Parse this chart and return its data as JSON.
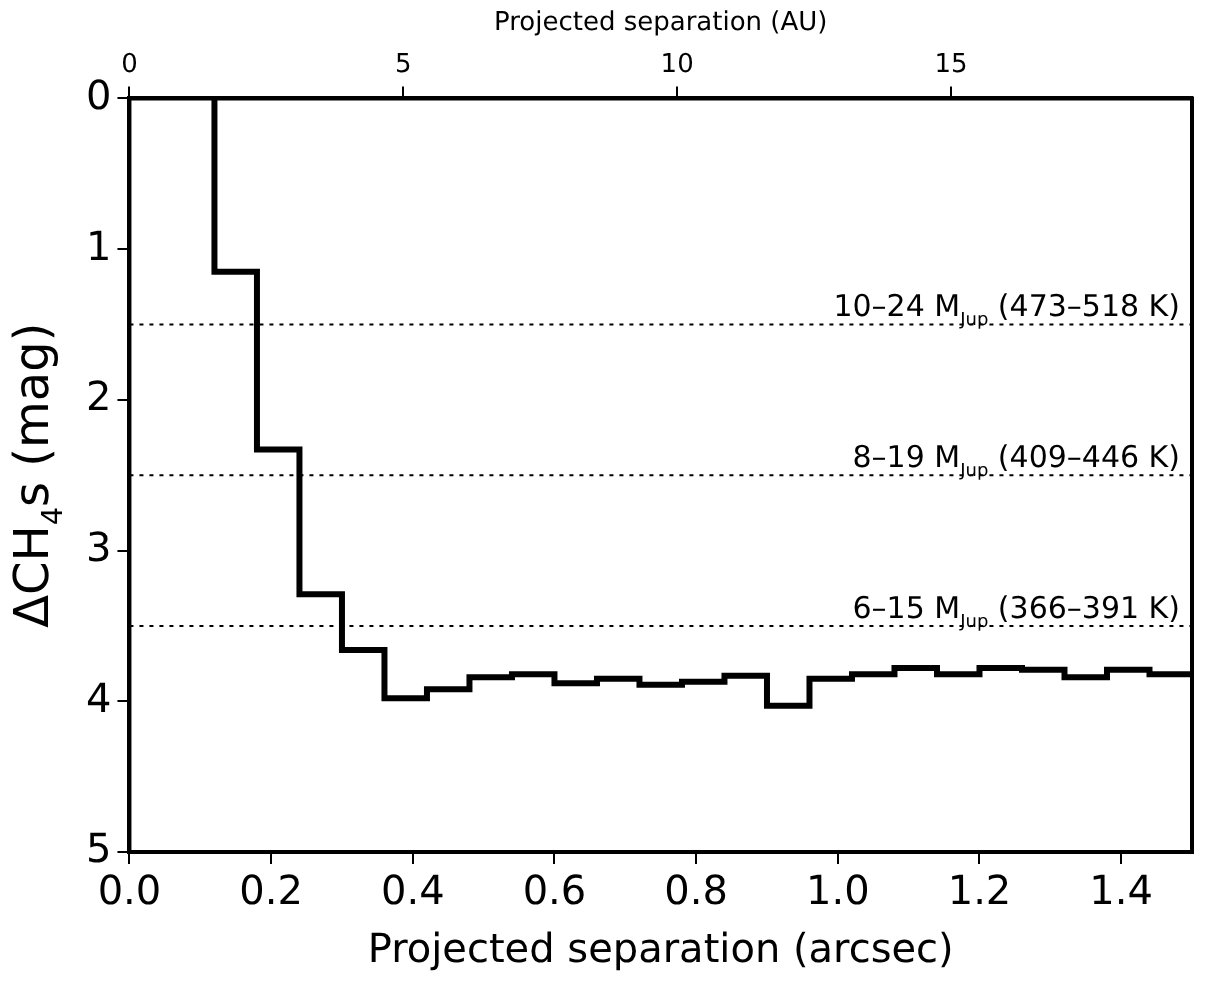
{
  "chart_data": {
    "type": "step",
    "xlabel": "Projected separation (arcsec)",
    "x2label": "Projected separation (AU)",
    "ylabel": "ΔCH$_{4}$s (mag)",
    "x": [
      0.12,
      0.18,
      0.24,
      0.3,
      0.36,
      0.42,
      0.48,
      0.54,
      0.6,
      0.66,
      0.72,
      0.78,
      0.84,
      0.9,
      0.96,
      1.02,
      1.08,
      1.14,
      1.2,
      1.26,
      1.32,
      1.38,
      1.44,
      1.5
    ],
    "series": [
      {
        "color": "#000000",
        "values": [
          0,
          1.15,
          2.33,
          3.29,
          3.66,
          3.98,
          3.92,
          3.84,
          3.82,
          3.88,
          3.85,
          3.89,
          3.87,
          3.83,
          4.03,
          3.85,
          3.82,
          3.78,
          3.82,
          3.78,
          3.79,
          3.84,
          3.79,
          3.82
        ]
      }
    ],
    "xlim": [
      0,
      1.5
    ],
    "xticks": [
      {
        "value": 0,
        "label": "0.0"
      },
      {
        "value": 0.2,
        "label": "0.2"
      },
      {
        "value": 0.4,
        "label": "0.4"
      },
      {
        "value": 0.6,
        "label": "0.6"
      },
      {
        "value": 0.8,
        "label": "0.8"
      },
      {
        "value": 1,
        "label": "1.0"
      },
      {
        "value": 1.2,
        "label": "1.2"
      },
      {
        "value": 1.4,
        "label": "1.4"
      }
    ],
    "x2lim": [
      0,
      19.4
    ],
    "x2ticks": [
      0,
      5,
      10,
      15
    ],
    "ylim": [
      5,
      0
    ],
    "yticks": [
      0,
      1,
      2,
      3,
      4,
      5
    ],
    "ref_lines": [
      {
        "axis": "y",
        "value": 1.5,
        "label": "10–24 M$_{Jup}$ (473–518 K)",
        "line_style": "dotted"
      },
      {
        "axis": "y",
        "value": 2.5,
        "label": "8–19 M$_{Jup}$ (409–446 K)",
        "line_style": "dotted"
      },
      {
        "axis": "y",
        "value": 3.5,
        "label": "6–15 M$_{Jup}$ (366–391 K)",
        "line_style": "dotted"
      }
    ],
    "grid": false,
    "legend": false,
    "line_style": "solid",
    "marker": "none"
  }
}
